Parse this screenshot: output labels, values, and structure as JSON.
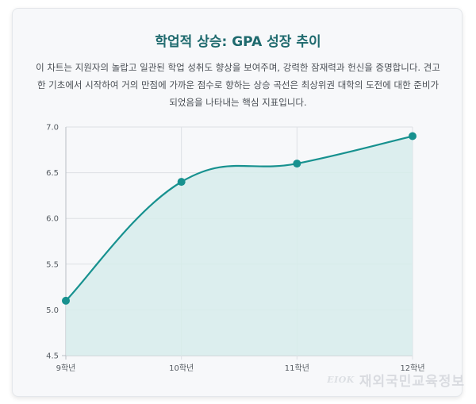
{
  "title": "학업적 상승: GPA 성장 추이",
  "description": "이 차트는 지원자의 놀랍고 일관된 학업 성취도 향상을 보여주며, 강력한 잠재력과 헌신을 증명합니다. 견고한 기초에서 시작하여 거의 만점에 가까운 점수로 향하는 상승 곡선은 최상위권 대학의 도전에 대한 준비가 되었음을 나타내는 핵심 지표입니다.",
  "watermark": {
    "badge": "EIOK",
    "text": "재외국민교육정보"
  },
  "colors": {
    "line": "#17918f",
    "fill": "#d7eceb",
    "grid": "#dde0e4",
    "axis": "#b9bec4"
  },
  "chart_data": {
    "type": "line",
    "categories": [
      "9학년",
      "10학년",
      "11학년",
      "12학년"
    ],
    "series": [
      {
        "values": [
          5.1,
          6.4,
          6.6,
          6.9
        ]
      }
    ],
    "ylim": [
      4.5,
      7.0
    ],
    "yticks": [
      4.5,
      5.0,
      5.5,
      6.0,
      6.5,
      7.0
    ],
    "ytick_labels": [
      "4.5",
      "5.0",
      "5.5",
      "6.0",
      "6.5",
      "7.0"
    ],
    "xlabel": "",
    "ylabel": "",
    "area_fill": true,
    "smooth": true,
    "grid": true,
    "legend": false
  }
}
